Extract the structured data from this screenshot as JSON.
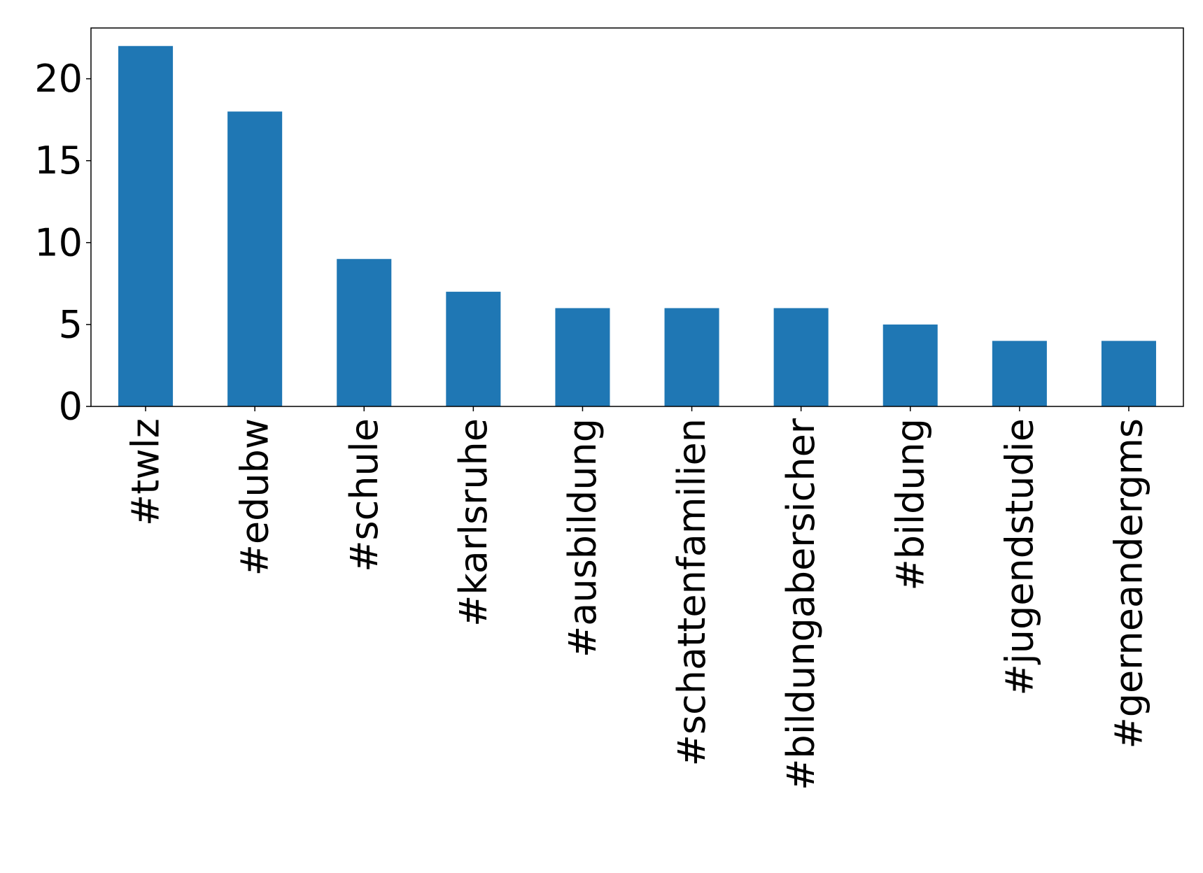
{
  "chart_data": {
    "type": "bar",
    "categories": [
      "#twlz",
      "#edubw",
      "#schule",
      "#karlsruhe",
      "#ausbildung",
      "#schattenfamilien",
      "#bildungabersicher",
      "#bildung",
      "#jugendstudie",
      "#gerneandergms"
    ],
    "values": [
      22,
      18,
      9,
      7,
      6,
      6,
      6,
      5,
      4,
      4
    ],
    "y_ticks": [
      0,
      5,
      10,
      15,
      20
    ],
    "ylim": [
      0,
      23.1
    ],
    "title": "",
    "xlabel": "",
    "ylabel": "",
    "grid": false,
    "legend": "none",
    "colors": {
      "bar": "#1f77b4",
      "axis": "#000000",
      "background": "#ffffff"
    }
  }
}
